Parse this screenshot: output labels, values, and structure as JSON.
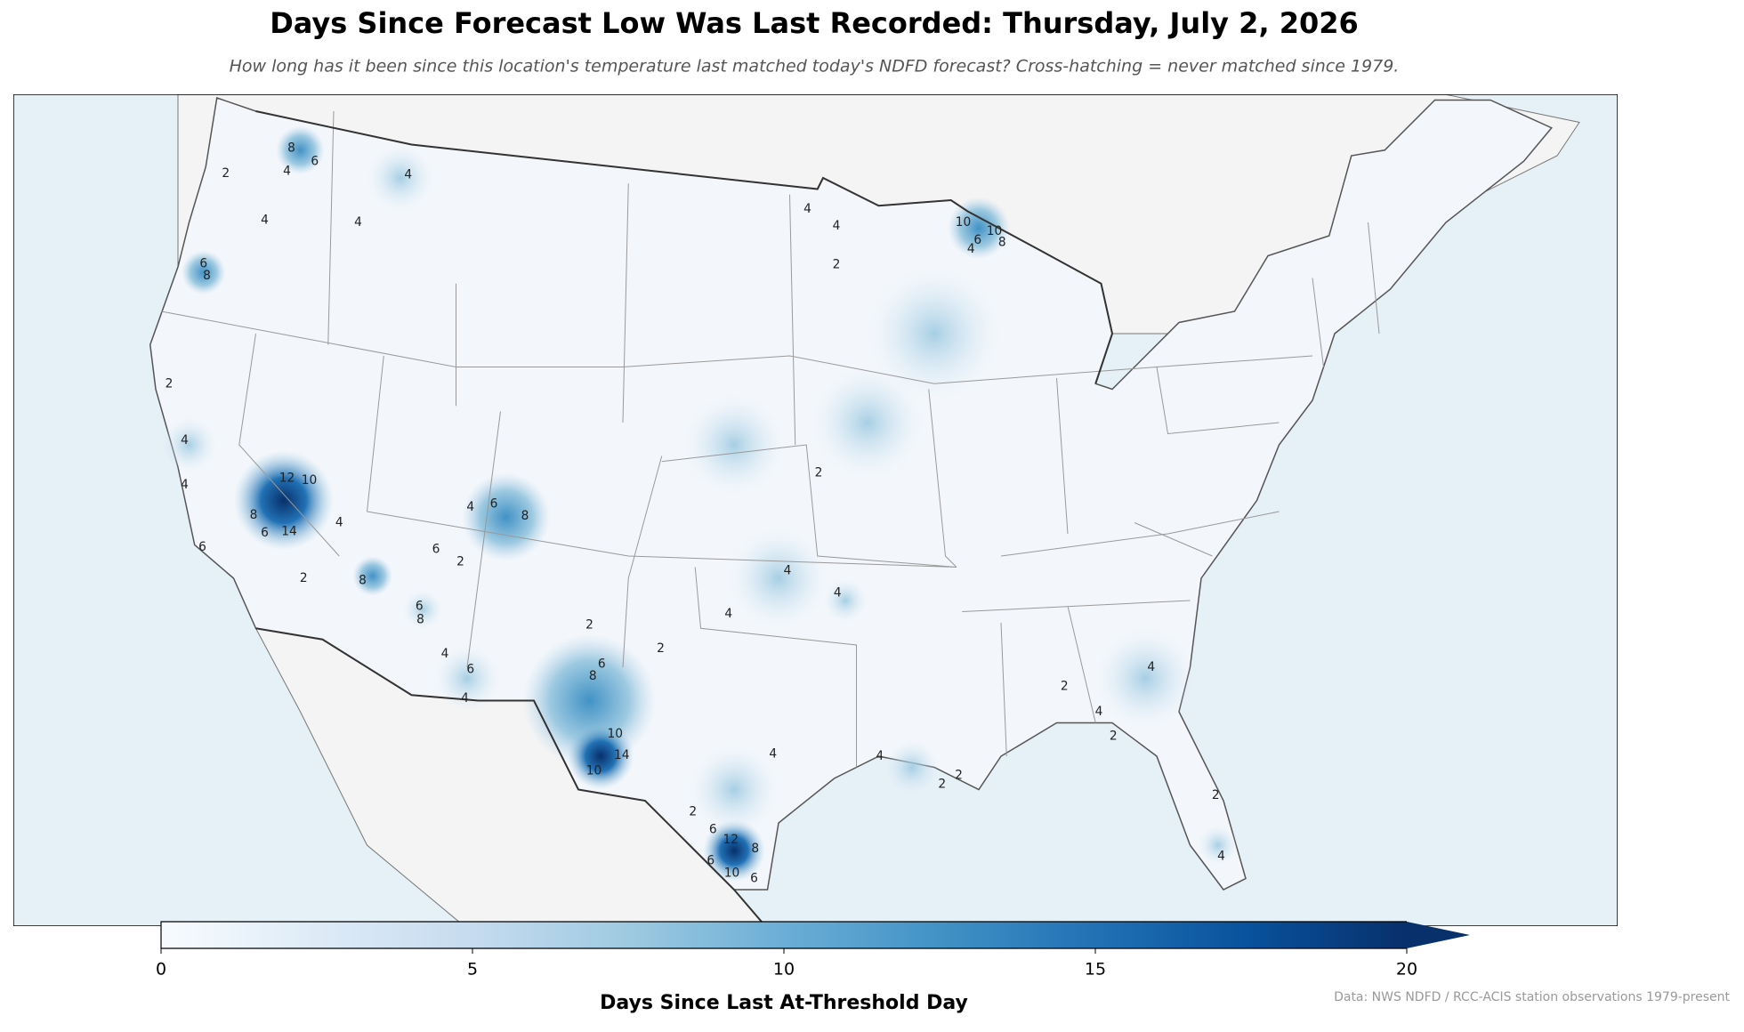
{
  "chart_data": {
    "type": "map",
    "title": "Days Since Forecast Low Was Last Recorded: Thursday, July 2, 2026",
    "subtitle": "How long has it been since this location's temperature last matched today's NDFD forecast? Cross-hatching = never matched since 1979.",
    "colorbar": {
      "label": "Days Since Last At-Threshold Day",
      "lim": [
        0,
        20
      ],
      "ticks": [
        0,
        5,
        10,
        15,
        20
      ],
      "extend": "max",
      "colors": [
        "#f7fbff",
        "#deebf7",
        "#c6dbef",
        "#9ecae1",
        "#6baed6",
        "#4292c6",
        "#2171b5",
        "#08519c",
        "#08306b"
      ]
    },
    "contour_labels": [
      8,
      6,
      4,
      2,
      4,
      4,
      4,
      6,
      8,
      2,
      4,
      4,
      12,
      10,
      8,
      6,
      14,
      4,
      6,
      2,
      8,
      6,
      8,
      4,
      6,
      4,
      2,
      4,
      6,
      8,
      6,
      2,
      2,
      8,
      6,
      10,
      14,
      10,
      4,
      4,
      4,
      2,
      2,
      4,
      4,
      10,
      10,
      6,
      4,
      8,
      4,
      4,
      2,
      2,
      2,
      4,
      2,
      4,
      4,
      2,
      12,
      6,
      8,
      6,
      10,
      6,
      2
    ],
    "source": "Data: NWS NDFD / RCC-ACIS station observations 1979-present"
  }
}
